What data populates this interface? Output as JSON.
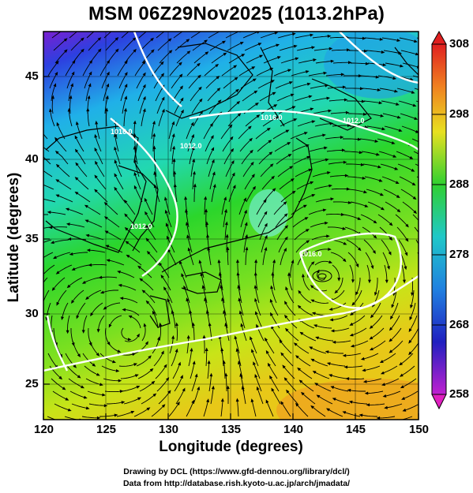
{
  "title": "MSM 06Z29Nov2025 (1013.2hPa)",
  "xlabel": "Longitude (degrees)",
  "ylabel": "Latitude  (degrees)",
  "x_ticks": [
    "120",
    "125",
    "130",
    "135",
    "140",
    "145",
    "150"
  ],
  "y_ticks": [
    "25",
    "30",
    "35",
    "40",
    "45"
  ],
  "colorbar_ticks": [
    "308",
    "298",
    "288",
    "278",
    "268",
    "258"
  ],
  "contour_labels": [
    "1016.0",
    "1012.0",
    "1012.0",
    "1016.0",
    "1016.0",
    "1012.0"
  ],
  "credit_line1": "Drawing by DCL (https://www.gfd-dennou.org/library/dcl/)",
  "credit_line2": "Data from http://database.rish.kyoto-u.ac.jp/arch/jmadata/",
  "colors": {
    "warm": "#f0a020",
    "mid": "#1fd01f",
    "cool": "#20c8d8",
    "cold": "#3050d0",
    "contour": "#ffffff"
  }
}
